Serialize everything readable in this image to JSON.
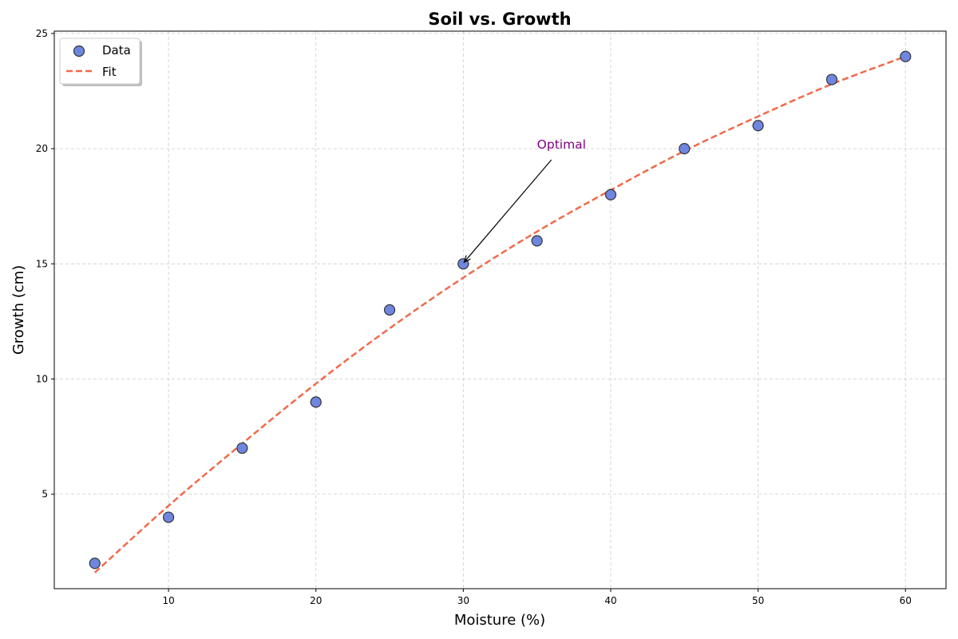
{
  "chart_data": {
    "type": "scatter",
    "title": "Soil vs. Growth",
    "xlabel": "Moisture (%)",
    "ylabel": "Growth (cm)",
    "xlim": [
      2.25,
      62.75
    ],
    "ylim": [
      0.9,
      25.1
    ],
    "xticks": [
      10,
      20,
      30,
      40,
      50,
      60
    ],
    "yticks": [
      5,
      10,
      15,
      20,
      25
    ],
    "grid": true,
    "legend_position": "top-left",
    "series": [
      {
        "name": "Data",
        "type": "scatter",
        "color": "#6f86e0",
        "edge_color": "#333333",
        "x": [
          5,
          10,
          15,
          20,
          25,
          30,
          35,
          40,
          45,
          50,
          55,
          60
        ],
        "y": [
          2,
          4,
          7,
          9,
          13,
          15,
          16,
          18,
          20,
          21,
          23,
          24
        ]
      },
      {
        "name": "Fit",
        "type": "line",
        "style": "dashed",
        "color": "#f26a4b",
        "x": [
          5,
          10,
          15,
          20,
          25,
          30,
          35,
          40,
          45,
          50,
          55,
          60
        ],
        "y": [
          1.6,
          4.5,
          7.2,
          9.8,
          12.2,
          14.4,
          16.4,
          18.2,
          19.9,
          21.4,
          22.8,
          24.0
        ]
      }
    ],
    "annotations": [
      {
        "text": "Optimal",
        "x": 30,
        "y": 15,
        "text_x": 35,
        "text_y": 20,
        "color": "#800080"
      }
    ]
  }
}
